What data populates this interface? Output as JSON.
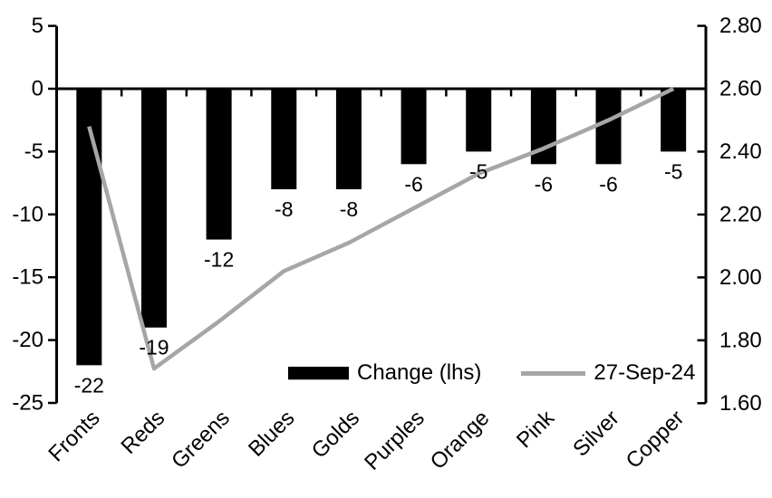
{
  "chart_data": {
    "type": "combo",
    "title": "",
    "categories": [
      "Fronts",
      "Reds",
      "Greens",
      "Blues",
      "Golds",
      "Purples",
      "Orange",
      "Pink",
      "Silver",
      "Copper"
    ],
    "series": [
      {
        "name": "Change (lhs)",
        "type": "bar",
        "axis": "left",
        "color": "#000000",
        "values": [
          -22,
          -19,
          -12,
          -8,
          -8,
          -6,
          -5,
          -6,
          -6,
          -5
        ],
        "data_labels": [
          "-22",
          "-19",
          "-12",
          "-8",
          "-8",
          "-6",
          "-5",
          "-6",
          "-6",
          "-5"
        ]
      },
      {
        "name": "27-Sep-24",
        "type": "line",
        "axis": "right",
        "color": "#a6a6a6",
        "values": [
          2.48,
          1.71,
          1.86,
          2.02,
          2.11,
          2.22,
          2.33,
          2.41,
          2.5,
          2.6
        ]
      }
    ],
    "left_axis": {
      "min": -25,
      "max": 5,
      "step": 5,
      "ticks": [
        "5",
        "0",
        "-5",
        "-10",
        "-15",
        "-20",
        "-25"
      ]
    },
    "right_axis": {
      "min": 1.6,
      "max": 2.8,
      "step": 0.2,
      "ticks": [
        "2.80",
        "2.60",
        "2.40",
        "2.20",
        "2.00",
        "1.80",
        "1.60"
      ]
    },
    "legend": {
      "position": "bottom-inside",
      "entries": [
        "Change (lhs)",
        "27-Sep-24"
      ]
    },
    "grid": false,
    "background": "#ffffff",
    "colors": {
      "bar": "#000000",
      "line": "#a6a6a6",
      "axis": "#000000",
      "text": "#000000"
    }
  }
}
